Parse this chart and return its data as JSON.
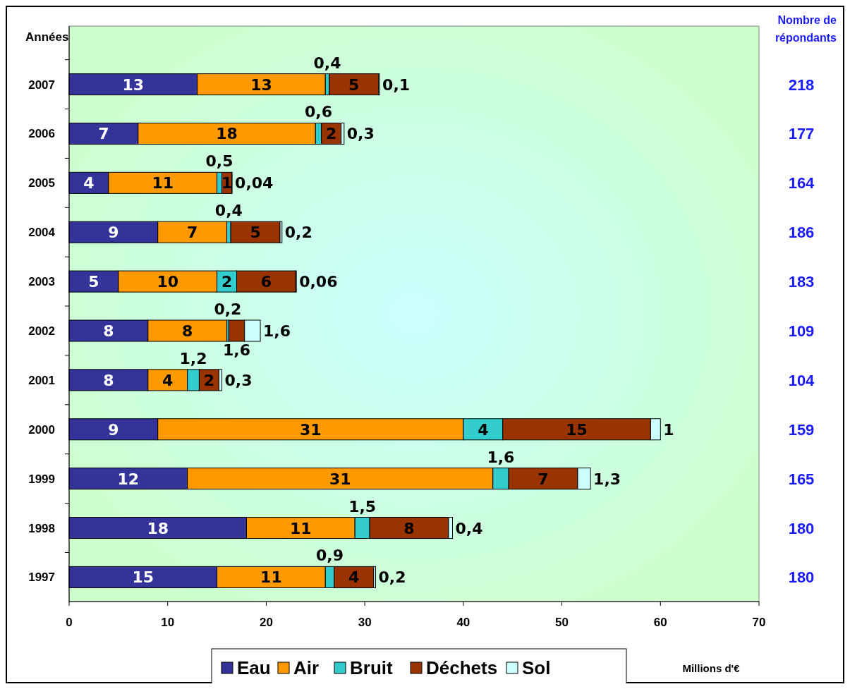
{
  "chart_data": {
    "type": "bar",
    "orientation": "horizontal",
    "stacked": true,
    "ylabel": "Années",
    "xlabel": "Millions d'€",
    "categories": [
      "2007",
      "2006",
      "2005",
      "2004",
      "2003",
      "2002",
      "2001",
      "2000",
      "1999",
      "1998",
      "1997"
    ],
    "series": [
      {
        "name": "Eau",
        "color": "#333399",
        "values": [
          13,
          7,
          4,
          9,
          5,
          8,
          8,
          9,
          12,
          18,
          15
        ],
        "value_labels": [
          "13",
          "7",
          "4",
          "9",
          "5",
          "8",
          "8",
          "9",
          "12",
          "18",
          "15"
        ]
      },
      {
        "name": "Air",
        "color": "#ff9900",
        "values": [
          13,
          18,
          11,
          7,
          10,
          8,
          4,
          31,
          31,
          11,
          11
        ],
        "value_labels": [
          "13",
          "18",
          "11",
          "7",
          "10",
          "8",
          "4",
          "31",
          "31",
          "11",
          "11"
        ]
      },
      {
        "name": "Bruit",
        "color": "#33cccc",
        "values": [
          0.4,
          0.6,
          0.5,
          0.4,
          2,
          0.2,
          1.2,
          4,
          1.6,
          1.5,
          0.9
        ],
        "value_labels": [
          "0,4",
          "0,6",
          "0,5",
          "0,4",
          "2",
          "0,2",
          "1,2",
          "4",
          "1,6",
          "1,5",
          "0,9"
        ]
      },
      {
        "name": "Déchets",
        "color": "#993300",
        "values": [
          5,
          2,
          1,
          5,
          6,
          1.6,
          2,
          15,
          7,
          8,
          4
        ],
        "value_labels": [
          "5",
          "2",
          "1",
          "5",
          "6",
          "1,6",
          "2",
          "15",
          "7",
          "8",
          "4"
        ]
      },
      {
        "name": "Sol",
        "color": "#ccffff",
        "values": [
          0.1,
          0.3,
          0.04,
          0.2,
          0.06,
          1.6,
          0.3,
          1,
          1.3,
          0.4,
          0.2
        ],
        "value_labels": [
          "0,1",
          "0,3",
          "0,04",
          "0,2",
          "0,06",
          "1,6",
          "0,3",
          "1",
          "1,3",
          "0,4",
          "0,2"
        ]
      }
    ],
    "xlim": [
      0,
      70
    ],
    "xticks": [
      0,
      10,
      20,
      30,
      40,
      50,
      60,
      70
    ],
    "grid": false,
    "legend": "bottom",
    "annotations": [
      "Nombre de répondants",
      "218",
      "177",
      "164",
      "186",
      "183",
      "109",
      "104",
      "159",
      "165",
      "180",
      "180"
    ]
  }
}
